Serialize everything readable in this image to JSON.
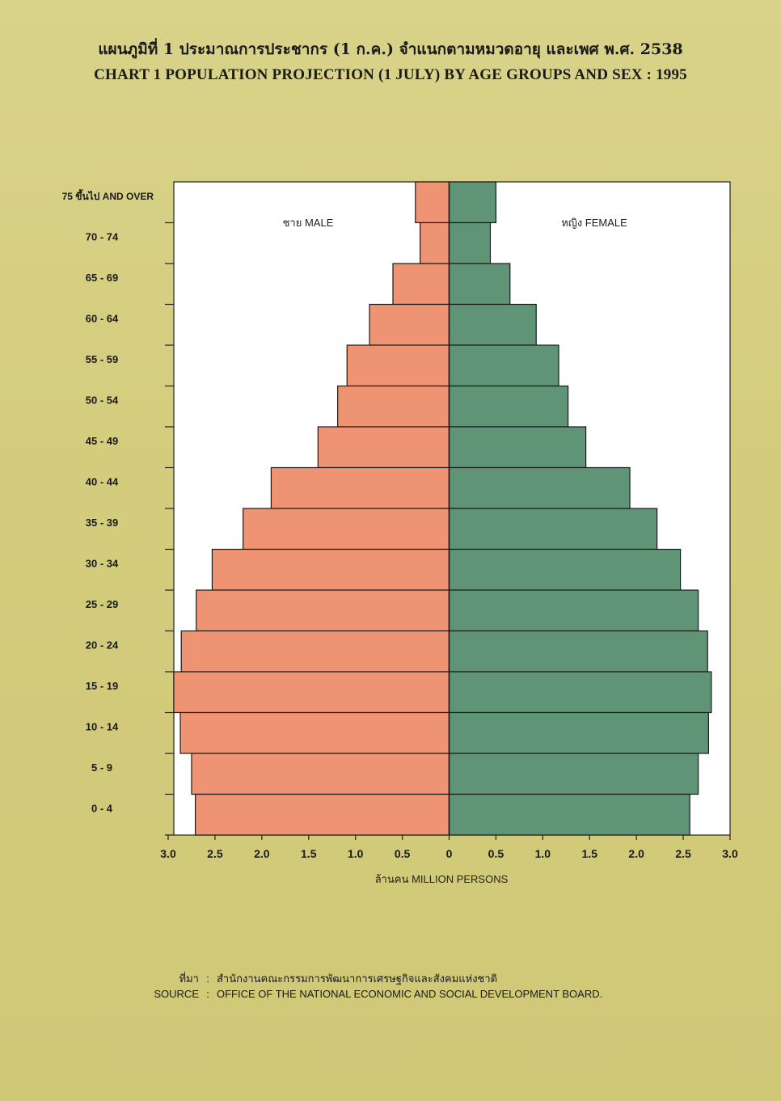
{
  "header": {
    "title_th": "แผนภูมิที่ 1 ประมาณการประชากร (1 ก.ค.) จำแนกตามหมวดอายุ และเพศ พ.ศ. 2538",
    "title_en": "CHART 1 POPULATION PROJECTION (1 JULY) BY AGE GROUPS AND SEX : 1995"
  },
  "chart_data": {
    "type": "bar",
    "orientation": "horizontal-pyramid",
    "categories": [
      "75 ขึ้นไป AND OVER",
      "70 - 74",
      "65 - 69",
      "60 - 64",
      "55 - 59",
      "50 - 54",
      "45 - 49",
      "40 - 44",
      "35 - 39",
      "30 - 34",
      "25 - 29",
      "20 - 24",
      "15 - 19",
      "10 - 14",
      "5 - 9",
      "0 - 4"
    ],
    "series": [
      {
        "name": "ชาย MALE",
        "color": "#ef9472",
        "values": [
          0.36,
          0.31,
          0.6,
          0.85,
          1.09,
          1.19,
          1.4,
          1.9,
          2.2,
          2.53,
          2.7,
          2.86,
          2.94,
          2.87,
          2.75,
          2.71
        ]
      },
      {
        "name": "หญิง FEMALE",
        "color": "#5f9477",
        "values": [
          0.5,
          0.44,
          0.65,
          0.93,
          1.17,
          1.27,
          1.46,
          1.93,
          2.22,
          2.47,
          2.66,
          2.76,
          2.8,
          2.77,
          2.66,
          2.57
        ]
      }
    ],
    "x_ticks": [
      "3.0",
      "2.5",
      "2.0",
      "1.5",
      "1.0",
      "0.5",
      "0",
      "0.5",
      "1.0",
      "1.5",
      "2.0",
      "2.5",
      "3.0"
    ],
    "xlabel": "ล้านคน MILLION PERSONS",
    "xlim": [
      -3.0,
      3.0
    ],
    "grid": false
  },
  "source": {
    "label_th": "ที่มา",
    "text_th": "สำนักงานคณะกรรมการพัฒนาการเศรษฐกิจและสังคมแห่งชาติ",
    "label_en": "SOURCE",
    "text_en": "OFFICE OF THE NATIONAL ECONOMIC AND SOCIAL DEVELOPMENT BOARD.",
    "separator": ":"
  }
}
